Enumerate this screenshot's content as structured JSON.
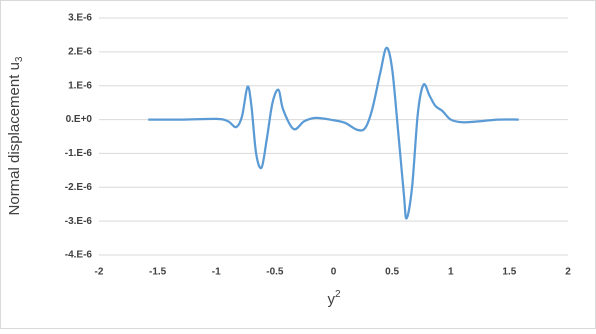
{
  "chart_data": {
    "type": "line",
    "x_label": {
      "text": "y",
      "superscript": "2"
    },
    "y_label": {
      "text": "Normal displacement u",
      "subscript": "3"
    },
    "x": [
      -1.58,
      -1.3,
      -1.0,
      -0.9,
      -0.83,
      -0.78,
      -0.733,
      -0.7,
      -0.66,
      -0.614,
      -0.57,
      -0.52,
      -0.469,
      -0.43,
      -0.34,
      -0.25,
      -0.15,
      0,
      0.1,
      0.2,
      0.27,
      0.33,
      0.4,
      0.452,
      0.5,
      0.55,
      0.6,
      0.623,
      0.67,
      0.72,
      0.768,
      0.82,
      0.87,
      0.93,
      1.0,
      1.1,
      1.25,
      1.4,
      1.58
    ],
    "series": [
      {
        "color": "#5b9bd5",
        "values": [
          0,
          0,
          2e-08,
          -5e-08,
          -2.2e-07,
          1e-07,
          9.7e-07,
          4e-07,
          -1e-06,
          -1.42e-06,
          -6e-07,
          5e-07,
          8.8e-07,
          3e-07,
          -2.8e-07,
          -5e-08,
          5e-08,
          -2e-08,
          -1e-07,
          -3e-07,
          -2.5e-07,
          3e-07,
          1.4e-06,
          2.12e-06,
          1.5e-06,
          -3e-07,
          -2.2e-06,
          -2.92e-06,
          -2e-06,
          2e-07,
          1.03e-06,
          7e-07,
          4e-07,
          2.5e-07,
          0,
          -8e-08,
          -5e-08,
          0,
          0
        ]
      }
    ],
    "xlim": [
      -2,
      2
    ],
    "xticks": [
      -2,
      -1.5,
      -1,
      -0.5,
      0,
      0.5,
      1,
      1.5,
      2
    ],
    "ylim": [
      -4e-06,
      3e-06
    ],
    "yticks": [
      {
        "value": -4e-06,
        "label": "-4.E-6"
      },
      {
        "value": -3e-06,
        "label": "-3.E-6"
      },
      {
        "value": -2e-06,
        "label": "-2.E-6"
      },
      {
        "value": -1e-06,
        "label": "-1.E-6"
      },
      {
        "value": 0,
        "label": "0.E+0"
      },
      {
        "value": 1e-06,
        "label": "1.E-6"
      },
      {
        "value": 2e-06,
        "label": "2.E-6"
      },
      {
        "value": 3e-06,
        "label": "3.E-6"
      }
    ],
    "grid": true
  }
}
